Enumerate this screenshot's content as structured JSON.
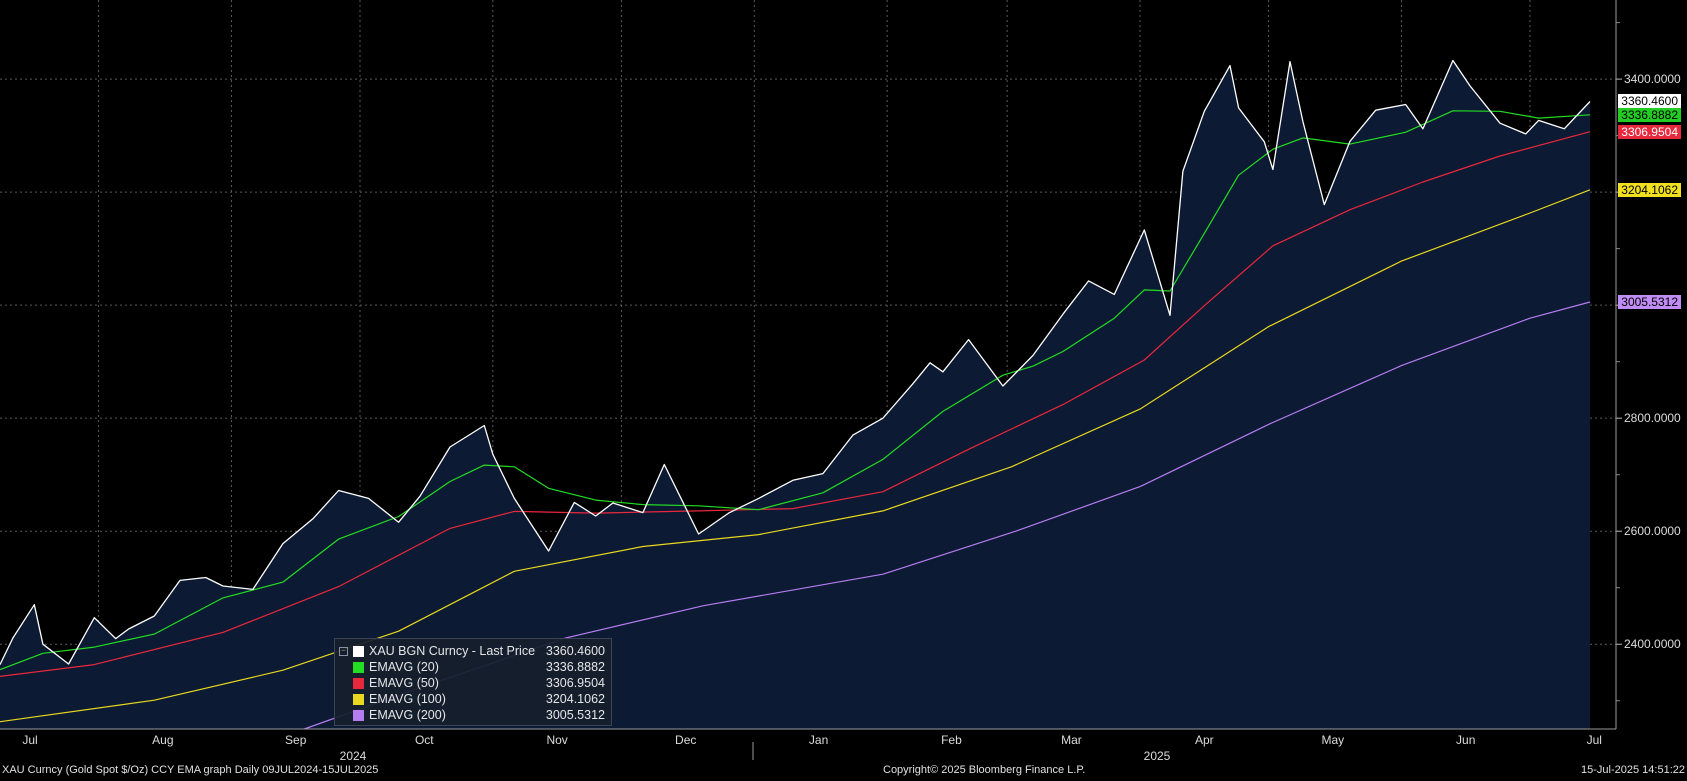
{
  "chart_data": {
    "type": "line",
    "title": "",
    "ylim": [
      2250,
      3540
    ],
    "y_ticks": [
      "2400.0000",
      "2600.0000",
      "2800.0000",
      "3000.0000",
      "3200.0000",
      "3400.0000"
    ],
    "y_tick_values": [
      2400,
      2600,
      2800,
      3000,
      3200,
      3400
    ],
    "x_range": [
      "2024-07-09",
      "2025-07-15"
    ],
    "x_ticks": [
      {
        "label": "Jul",
        "date": "2024-07-01"
      },
      {
        "label": "Aug",
        "date": "2024-08-01"
      },
      {
        "label": "Sep",
        "date": "2024-09-01"
      },
      {
        "label": "Oct",
        "date": "2024-10-01"
      },
      {
        "label": "Nov",
        "date": "2024-11-01"
      },
      {
        "label": "Dec",
        "date": "2024-12-01"
      },
      {
        "label": "Jan",
        "date": "2025-01-01"
      },
      {
        "label": "Feb",
        "date": "2025-02-01"
      },
      {
        "label": "Mar",
        "date": "2025-03-01"
      },
      {
        "label": "Apr",
        "date": "2025-04-01"
      },
      {
        "label": "May",
        "date": "2025-05-01"
      },
      {
        "label": "Jun",
        "date": "2025-06-01"
      },
      {
        "label": "Jul",
        "date": "2025-07-01"
      }
    ],
    "year_labels": [
      "2024",
      "2025"
    ],
    "grid": true,
    "series": [
      {
        "name": "XAU BGN Curncy - Last Price",
        "color": "#ffffff",
        "last": "3360.4600",
        "points": [
          [
            "2024-07-09",
            2364
          ],
          [
            "2024-07-12",
            2411
          ],
          [
            "2024-07-17",
            2470
          ],
          [
            "2024-07-19",
            2400
          ],
          [
            "2024-07-25",
            2365
          ],
          [
            "2024-07-31",
            2447
          ],
          [
            "2024-08-05",
            2410
          ],
          [
            "2024-08-08",
            2427
          ],
          [
            "2024-08-14",
            2450
          ],
          [
            "2024-08-20",
            2513
          ],
          [
            "2024-08-26",
            2518
          ],
          [
            "2024-08-30",
            2503
          ],
          [
            "2024-09-06",
            2497
          ],
          [
            "2024-09-13",
            2578
          ],
          [
            "2024-09-20",
            2622
          ],
          [
            "2024-09-26",
            2672
          ],
          [
            "2024-10-03",
            2658
          ],
          [
            "2024-10-10",
            2616
          ],
          [
            "2024-10-15",
            2662
          ],
          [
            "2024-10-22",
            2749
          ],
          [
            "2024-10-30",
            2787
          ],
          [
            "2024-11-01",
            2736
          ],
          [
            "2024-11-06",
            2658
          ],
          [
            "2024-11-14",
            2565
          ],
          [
            "2024-11-20",
            2651
          ],
          [
            "2024-11-25",
            2627
          ],
          [
            "2024-11-29",
            2650
          ],
          [
            "2024-12-06",
            2633
          ],
          [
            "2024-12-11",
            2718
          ],
          [
            "2024-12-19",
            2595
          ],
          [
            "2024-12-26",
            2632
          ],
          [
            "2025-01-02",
            2658
          ],
          [
            "2025-01-10",
            2690
          ],
          [
            "2025-01-17",
            2702
          ],
          [
            "2025-01-24",
            2770
          ],
          [
            "2025-01-31",
            2800
          ],
          [
            "2025-02-07",
            2861
          ],
          [
            "2025-02-11",
            2898
          ],
          [
            "2025-02-14",
            2882
          ],
          [
            "2025-02-20",
            2939
          ],
          [
            "2025-02-28",
            2857
          ],
          [
            "2025-03-07",
            2911
          ],
          [
            "2025-03-14",
            2984
          ],
          [
            "2025-03-20",
            3043
          ],
          [
            "2025-03-26",
            3019
          ],
          [
            "2025-04-02",
            3133
          ],
          [
            "2025-04-08",
            2982
          ],
          [
            "2025-04-11",
            3237
          ],
          [
            "2025-04-16",
            3343
          ],
          [
            "2025-04-22",
            3424
          ],
          [
            "2025-04-24",
            3349
          ],
          [
            "2025-04-30",
            3289
          ],
          [
            "2025-05-02",
            3240
          ],
          [
            "2025-05-06",
            3431
          ],
          [
            "2025-05-09",
            3325
          ],
          [
            "2025-05-14",
            3178
          ],
          [
            "2025-05-20",
            3290
          ],
          [
            "2025-05-26",
            3345
          ],
          [
            "2025-06-02",
            3355
          ],
          [
            "2025-06-06",
            3312
          ],
          [
            "2025-06-13",
            3433
          ],
          [
            "2025-06-17",
            3388
          ],
          [
            "2025-06-24",
            3322
          ],
          [
            "2025-06-30",
            3303
          ],
          [
            "2025-07-03",
            3327
          ],
          [
            "2025-07-09",
            3312
          ],
          [
            "2025-07-15",
            3360.46
          ]
        ]
      },
      {
        "name": "EMAVG (20)",
        "color": "#22dd22",
        "last": "3336.8882",
        "points": [
          [
            "2024-07-09",
            2355
          ],
          [
            "2024-07-19",
            2384
          ],
          [
            "2024-07-31",
            2395
          ],
          [
            "2024-08-14",
            2418
          ],
          [
            "2024-08-30",
            2482
          ],
          [
            "2024-09-13",
            2510
          ],
          [
            "2024-09-26",
            2586
          ],
          [
            "2024-10-10",
            2626
          ],
          [
            "2024-10-22",
            2688
          ],
          [
            "2024-10-30",
            2717
          ],
          [
            "2024-11-06",
            2714
          ],
          [
            "2024-11-14",
            2676
          ],
          [
            "2024-11-25",
            2655
          ],
          [
            "2024-12-06",
            2647
          ],
          [
            "2024-12-19",
            2645
          ],
          [
            "2025-01-02",
            2638
          ],
          [
            "2025-01-17",
            2668
          ],
          [
            "2025-01-31",
            2727
          ],
          [
            "2025-02-14",
            2812
          ],
          [
            "2025-02-28",
            2876
          ],
          [
            "2025-03-07",
            2892
          ],
          [
            "2025-03-14",
            2918
          ],
          [
            "2025-03-26",
            2977
          ],
          [
            "2025-04-02",
            3027
          ],
          [
            "2025-04-08",
            3025
          ],
          [
            "2025-04-16",
            3127
          ],
          [
            "2025-04-24",
            3230
          ],
          [
            "2025-05-02",
            3276
          ],
          [
            "2025-05-09",
            3296
          ],
          [
            "2025-05-20",
            3285
          ],
          [
            "2025-06-02",
            3306
          ],
          [
            "2025-06-13",
            3344
          ],
          [
            "2025-06-24",
            3343
          ],
          [
            "2025-07-03",
            3331
          ],
          [
            "2025-07-15",
            3336.89
          ]
        ]
      },
      {
        "name": "EMAVG (50)",
        "color": "#e8283c",
        "last": "3306.9504",
        "points": [
          [
            "2024-07-09",
            2343
          ],
          [
            "2024-07-31",
            2364
          ],
          [
            "2024-08-30",
            2421
          ],
          [
            "2024-09-26",
            2502
          ],
          [
            "2024-10-22",
            2605
          ],
          [
            "2024-11-06",
            2635
          ],
          [
            "2024-11-25",
            2632
          ],
          [
            "2024-12-19",
            2636
          ],
          [
            "2025-01-10",
            2640
          ],
          [
            "2025-01-31",
            2670
          ],
          [
            "2025-02-20",
            2745
          ],
          [
            "2025-03-14",
            2824
          ],
          [
            "2025-04-02",
            2903
          ],
          [
            "2025-04-16",
            2999
          ],
          [
            "2025-05-02",
            3105
          ],
          [
            "2025-05-20",
            3169
          ],
          [
            "2025-06-06",
            3218
          ],
          [
            "2025-06-24",
            3264
          ],
          [
            "2025-07-15",
            3306.95
          ]
        ]
      },
      {
        "name": "EMAVG (100)",
        "color": "#e8d820",
        "last": "3204.1062",
        "points": [
          [
            "2024-07-09",
            2263
          ],
          [
            "2024-08-14",
            2301
          ],
          [
            "2024-09-13",
            2354
          ],
          [
            "2024-10-10",
            2423
          ],
          [
            "2024-11-06",
            2529
          ],
          [
            "2024-12-06",
            2573
          ],
          [
            "2025-01-02",
            2594
          ],
          [
            "2025-01-31",
            2636
          ],
          [
            "2025-03-02",
            2714
          ],
          [
            "2025-04-01",
            2816
          ],
          [
            "2025-05-01",
            2962
          ],
          [
            "2025-06-01",
            3078
          ],
          [
            "2025-07-01",
            3163
          ],
          [
            "2025-07-15",
            3204.11
          ]
        ]
      },
      {
        "name": "EMAVG (200)",
        "color": "#b57df0",
        "last": "3005.5312",
        "points": [
          [
            "2024-09-18",
            2250
          ],
          [
            "2024-10-15",
            2323
          ],
          [
            "2024-11-18",
            2411
          ],
          [
            "2024-12-20",
            2468
          ],
          [
            "2025-01-31",
            2524
          ],
          [
            "2025-03-03",
            2600
          ],
          [
            "2025-04-01",
            2679
          ],
          [
            "2025-05-01",
            2789
          ],
          [
            "2025-06-01",
            2893
          ],
          [
            "2025-07-01",
            2977
          ],
          [
            "2025-07-15",
            3005.53
          ]
        ]
      }
    ]
  },
  "legend_items": [
    {
      "name": "XAU BGN Curncy - Last Price",
      "value": "3360.4600",
      "color": "#ffffff"
    },
    {
      "name": "EMAVG (20)",
      "value": "3336.8882",
      "color": "#22dd22"
    },
    {
      "name": "EMAVG (50)",
      "value": "3306.9504",
      "color": "#e8283c"
    },
    {
      "name": "EMAVG (100)",
      "value": "3204.1062",
      "color": "#e8d820"
    },
    {
      "name": "EMAVG (200)",
      "value": "3005.5312",
      "color": "#b57df0"
    }
  ],
  "tags": [
    {
      "value": "3360.4600",
      "y": 3360.46,
      "bg": "#ffffff",
      "fg": "#000000"
    },
    {
      "value": "3336.8882",
      "y": 3336.89,
      "bg": "#22cc22",
      "fg": "#000000"
    },
    {
      "value": "3306.9504",
      "y": 3306.95,
      "bg": "#e8283c",
      "fg": "#ffffff"
    },
    {
      "value": "3204.1062",
      "y": 3204.11,
      "bg": "#f0e020",
      "fg": "#000000"
    },
    {
      "value": "3005.5312",
      "y": 3005.53,
      "bg": "#c08cf5",
      "fg": "#000000"
    }
  ],
  "footer": {
    "left": "XAU Curncy (Gold Spot  $/Oz) CCY EMA graph  Daily 09JUL2024-15JUL2025",
    "center": "Copyright© 2025 Bloomberg Finance L.P.",
    "right": "15-Jul-2025 14:51:22"
  },
  "colors": {
    "background": "#000000",
    "area_fill": "#0c1a33",
    "grid": "#5a5a5a"
  },
  "legend_corner_icon": "collapse-icon"
}
